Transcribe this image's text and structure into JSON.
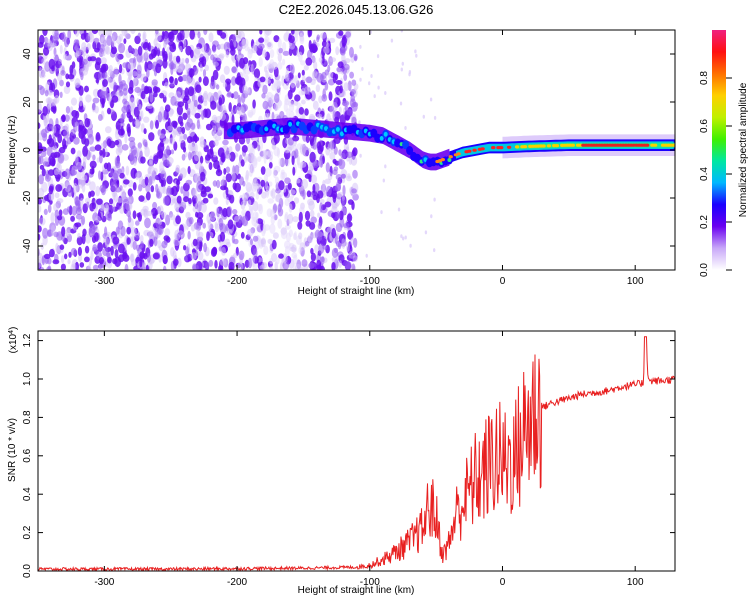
{
  "title": "C2E2.2026.045.13.06.G26",
  "chart_data": [
    {
      "type": "heatmap",
      "xlabel": "Height of straight line (km)",
      "ylabel": "Frequency (Hz)",
      "xlim": [
        -350,
        130
      ],
      "ylim": [
        -50,
        50
      ],
      "xticks": [
        -300,
        -200,
        -100,
        0,
        100
      ],
      "yticks": [
        -40,
        -20,
        0,
        20,
        40
      ],
      "colorbar": {
        "label": "Normalized spectral amplitude",
        "range": [
          0.0,
          1.0
        ],
        "ticks": [
          "0.0",
          "0.2",
          "0.4",
          "0.6",
          "0.8"
        ],
        "colors": [
          "#ffffff",
          "#c8a8f8",
          "#6a00f0",
          "#1a00ff",
          "#00b8ff",
          "#00e8a0",
          "#40f000",
          "#c0f000",
          "#ffd000",
          "#ff7000",
          "#ff1010",
          "#f02080"
        ]
      },
      "ridge": {
        "x": [
          -200,
          -180,
          -160,
          -140,
          -120,
          -100,
          -90,
          -80,
          -70,
          -60,
          -55,
          -50,
          -40,
          -30,
          -20,
          -10,
          0,
          20,
          50,
          80,
          100,
          130
        ],
        "freq": [
          8,
          9,
          10,
          9,
          8,
          7,
          6,
          3,
          0,
          -4,
          -5,
          -5,
          -3,
          -1,
          0,
          1,
          1,
          1.5,
          2,
          2,
          2,
          2
        ]
      },
      "noise_x_range": [
        -350,
        -110
      ]
    },
    {
      "type": "line",
      "xlabel": "Height of straight line (km)",
      "ylabel": "SNR (10 * v/v)",
      "scale_note": "(x10^4)",
      "xlim": [
        -350,
        130
      ],
      "ylim": [
        0,
        1.25
      ],
      "xticks": [
        -300,
        -200,
        -100,
        0,
        100
      ],
      "yticks": [
        "0.0",
        "0.2",
        "0.4",
        "0.6",
        "0.8",
        "1.0",
        "1.2"
      ],
      "series": [
        {
          "name": "SNR",
          "color": "#e82020",
          "x": [
            -350,
            -250,
            -150,
            -110,
            -100,
            -90,
            -80,
            -70,
            -60,
            -55,
            -50,
            -45,
            -40,
            -35,
            -30,
            -25,
            -20,
            -15,
            -10,
            -5,
            0,
            5,
            10,
            15,
            20,
            25,
            30,
            35,
            40,
            50,
            60,
            70,
            80,
            90,
            100,
            106,
            108,
            110,
            120,
            130
          ],
          "y": [
            0.01,
            0.01,
            0.015,
            0.02,
            0.03,
            0.06,
            0.1,
            0.15,
            0.22,
            0.35,
            0.28,
            0.08,
            0.15,
            0.3,
            0.35,
            0.42,
            0.48,
            0.5,
            0.55,
            0.6,
            0.56,
            0.58,
            0.6,
            0.7,
            0.78,
            0.83,
            0.85,
            0.87,
            0.88,
            0.9,
            0.92,
            0.93,
            0.94,
            0.96,
            0.97,
            0.98,
            1.2,
            0.99,
            0.99,
            1.0
          ]
        }
      ]
    }
  ]
}
